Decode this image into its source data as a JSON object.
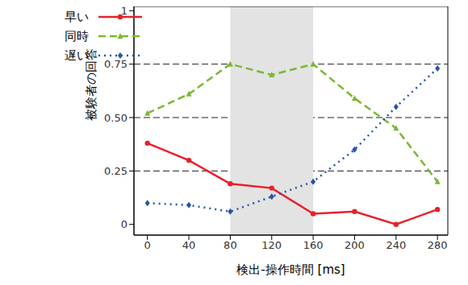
{
  "chart_data": {
    "type": "line",
    "x_label": "検出-操作時間 [ms]",
    "y_label": "被験者の回答",
    "x": [
      0,
      40,
      80,
      120,
      160,
      200,
      240,
      280
    ],
    "series": [
      {
        "name": "早い",
        "color": "#e8202a",
        "marker": "circle",
        "line_style": "solid",
        "values": [
          0.38,
          0.3,
          0.19,
          0.17,
          0.05,
          0.06,
          0.0,
          0.07
        ]
      },
      {
        "name": "同時",
        "color": "#7ab833",
        "marker": "triangle",
        "line_style": "dashed",
        "values": [
          0.52,
          0.61,
          0.75,
          0.7,
          0.75,
          0.59,
          0.45,
          0.2
        ]
      },
      {
        "name": "遅い",
        "color": "#2255aa",
        "marker": "diamond",
        "line_style": "dotted",
        "values": [
          0.1,
          0.09,
          0.06,
          0.13,
          0.2,
          0.35,
          0.55,
          0.73
        ]
      }
    ],
    "xlim": [
      -13,
      290
    ],
    "xticks": [
      0,
      40,
      80,
      120,
      160,
      200,
      240,
      280
    ],
    "ylim": [
      -0.05,
      1.02
    ],
    "yticks": [
      0,
      0.25,
      {
        "value": 0.5,
        "label": "0.50"
      },
      0.75,
      1
    ],
    "grid": true,
    "legend": "upper left",
    "highlight": [
      80,
      160
    ]
  }
}
